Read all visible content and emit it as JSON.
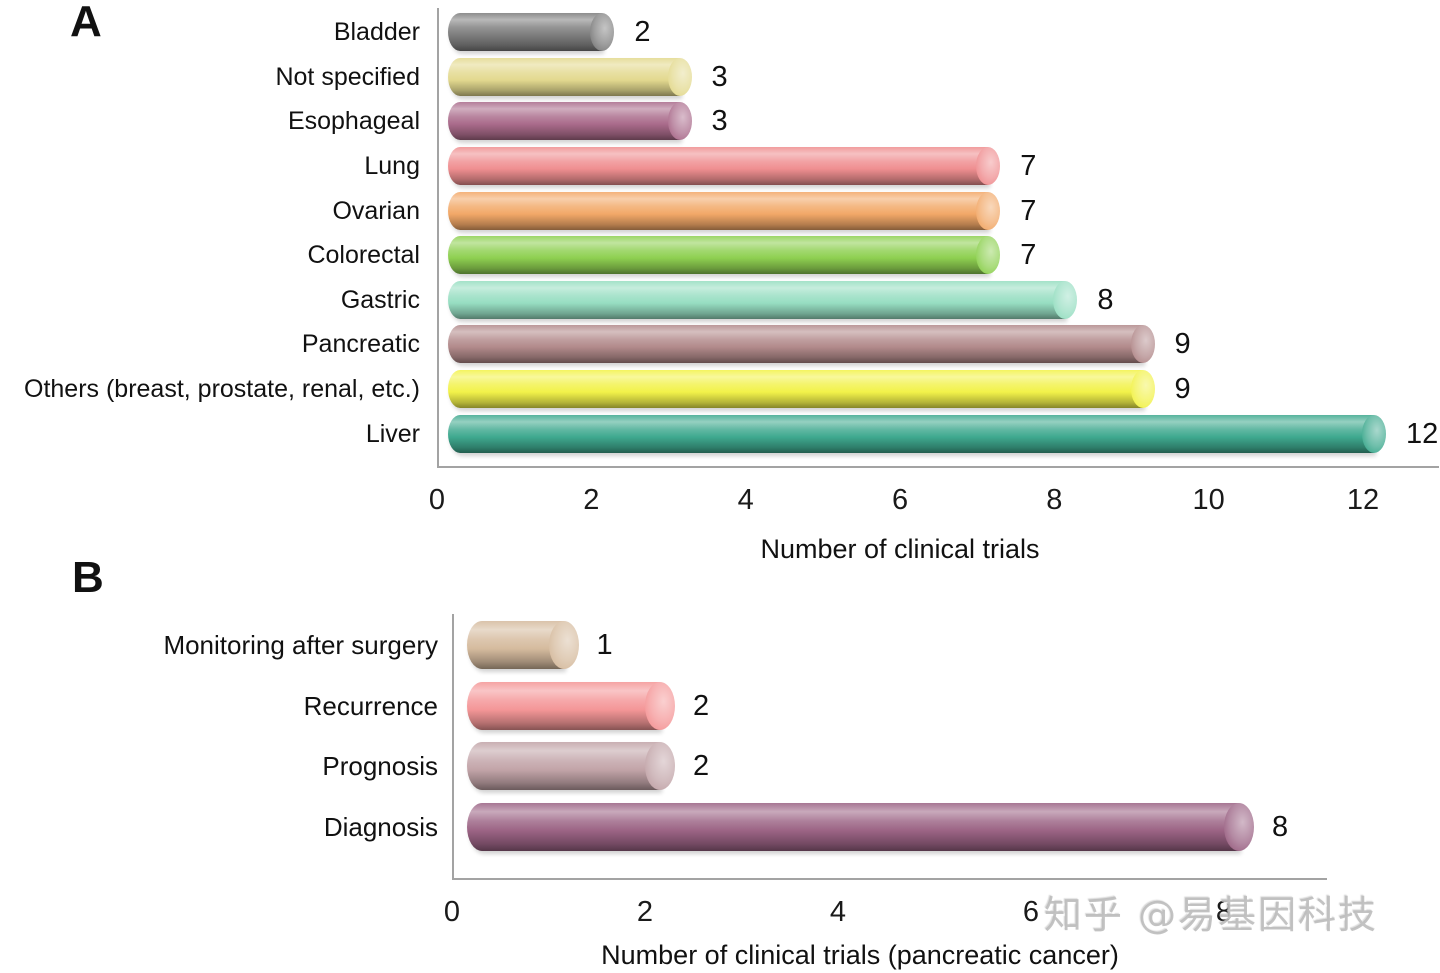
{
  "panel_labels": [
    "A",
    "B"
  ],
  "watermark": {
    "text": "知乎 @易基因科技"
  },
  "chart_data": [
    {
      "type": "bar",
      "orientation": "horizontal",
      "bar_style": "3d-cylinder",
      "xlabel": "Number of clinical trials",
      "categories": [
        "Bladder",
        "Not specified",
        "Esophageal",
        "Lung",
        "Ovarian",
        "Colorectal",
        "Gastric",
        "Pancreatic",
        "Others (breast, prostate, renal, etc.)",
        "Liver"
      ],
      "values": [
        2,
        3,
        3,
        7,
        7,
        7,
        8,
        9,
        9,
        12
      ],
      "bar_colors": [
        "#7d7d7d",
        "#e3d98f",
        "#aa6b8b",
        "#ef8e90",
        "#f2a868",
        "#8ed051",
        "#97dec2",
        "#b28a8b",
        "#f2f24a",
        "#3fa98f"
      ],
      "xticks": [
        0,
        2,
        4,
        6,
        8,
        10,
        12
      ],
      "xlim": [
        0,
        13
      ],
      "grid": false,
      "value_labels_shown": true
    },
    {
      "type": "bar",
      "orientation": "horizontal",
      "bar_style": "3d-cylinder",
      "xlabel": "Number of clinical trials (pancreatic cancer)",
      "categories": [
        "Monitoring after surgery",
        "Recurrence",
        "Prognosis",
        "Diagnosis"
      ],
      "values": [
        1,
        2,
        2,
        8
      ],
      "bar_colors": [
        "#d5bb9e",
        "#f49697",
        "#c2a4a8",
        "#9b6384"
      ],
      "xticks": [
        0,
        2,
        4,
        6,
        8
      ],
      "xlim": [
        0,
        9
      ],
      "grid": false,
      "value_labels_shown": true
    }
  ],
  "colors": {
    "axis_line": "#a3a3a3",
    "text": "#111111",
    "watermark": "#bbbbbb",
    "background": "#ffffff"
  }
}
